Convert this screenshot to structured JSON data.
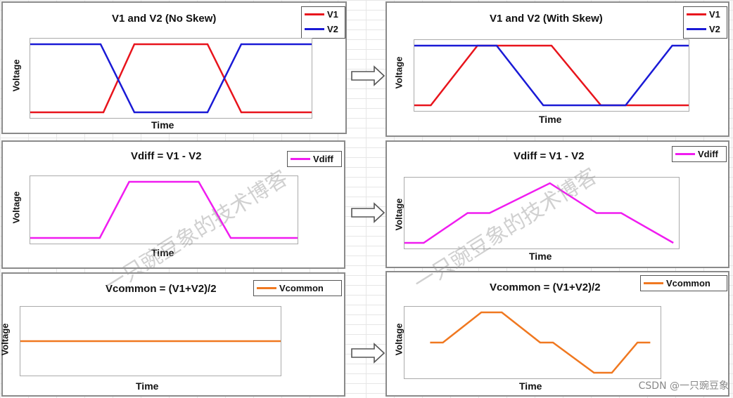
{
  "xlabel": "Time",
  "ylabel": "Voltage",
  "colors": {
    "v1": "#e8141c",
    "v2": "#1a1ad6",
    "vdiff": "#f01cf0",
    "vcommon": "#f07820"
  },
  "watermark_1": "一只豌豆象的技术博客",
  "watermark_2": "一只豌豆象的技术博客",
  "credit": "CSDN @一只豌豆象",
  "chart_data": [
    {
      "id": "p1",
      "type": "line",
      "title": "V1 and V2 (No Skew)",
      "xlabel": "Time",
      "ylabel": "Voltage",
      "legend": "top-right",
      "series": [
        {
          "name": "V1",
          "color": "#e8141c",
          "x": [
            0,
            0.26,
            0.37,
            0.63,
            0.75,
            1
          ],
          "y": [
            0,
            0,
            1,
            1,
            0,
            0
          ]
        },
        {
          "name": "V2",
          "color": "#1a1ad6",
          "x": [
            0,
            0.25,
            0.37,
            0.63,
            0.75,
            1
          ],
          "y": [
            1,
            1,
            0,
            0,
            1,
            1
          ]
        }
      ]
    },
    {
      "id": "p2",
      "type": "line",
      "title": "V1 and V2 (With Skew)",
      "xlabel": "Time",
      "ylabel": "Voltage",
      "legend": "top-right",
      "series": [
        {
          "name": "V1",
          "color": "#e8141c",
          "x": [
            0,
            0.06,
            0.23,
            0.5,
            0.68,
            1
          ],
          "y": [
            0,
            0,
            1,
            1,
            0,
            0
          ]
        },
        {
          "name": "V2",
          "color": "#1a1ad6",
          "x": [
            0,
            0.3,
            0.47,
            0.77,
            0.94,
            1
          ],
          "y": [
            1,
            1,
            0,
            0,
            1,
            1
          ]
        }
      ]
    },
    {
      "id": "p3",
      "type": "line",
      "title": "Vdiff = V1 - V2",
      "xlabel": "Time",
      "ylabel": "Voltage",
      "legend": "top-right",
      "series": [
        {
          "name": "Vdiff",
          "color": "#f01cf0",
          "x": [
            0,
            0.26,
            0.37,
            0.63,
            0.75,
            1
          ],
          "y": [
            0,
            0,
            1,
            1,
            0,
            0
          ]
        }
      ]
    },
    {
      "id": "p4",
      "type": "line",
      "title": "Vdiff = V1 - V2",
      "xlabel": "Time",
      "ylabel": "Voltage",
      "legend": "top-right",
      "series": [
        {
          "name": "Vdiff",
          "color": "#f01cf0",
          "x": [
            0,
            0.07,
            0.23,
            0.31,
            0.53,
            0.7,
            0.79,
            0.98
          ],
          "y": [
            0.0,
            0.0,
            0.5,
            0.5,
            1,
            0.5,
            0.5,
            0.0
          ]
        }
      ]
    },
    {
      "id": "p5",
      "type": "line",
      "title": "Vcommon = (V1+V2)/2",
      "xlabel": "Time",
      "ylabel": "Voltage",
      "legend": "top-right",
      "series": [
        {
          "name": "Vcommon",
          "color": "#f07820",
          "x": [
            0,
            1
          ],
          "y": [
            0.5,
            0.5
          ]
        }
      ]
    },
    {
      "id": "p6",
      "type": "line",
      "title": "Vcommon = (V1+V2)/2",
      "xlabel": "Time",
      "ylabel": "Voltage",
      "legend": "top-right",
      "series": [
        {
          "name": "Vcommon",
          "color": "#f07820",
          "x": [
            0.1,
            0.15,
            0.3,
            0.38,
            0.53,
            0.58,
            0.74,
            0.81,
            0.91,
            0.96
          ],
          "y": [
            0.5,
            0.5,
            1,
            1,
            0.5,
            0.5,
            0,
            0,
            0.5,
            0.5
          ]
        }
      ]
    }
  ]
}
